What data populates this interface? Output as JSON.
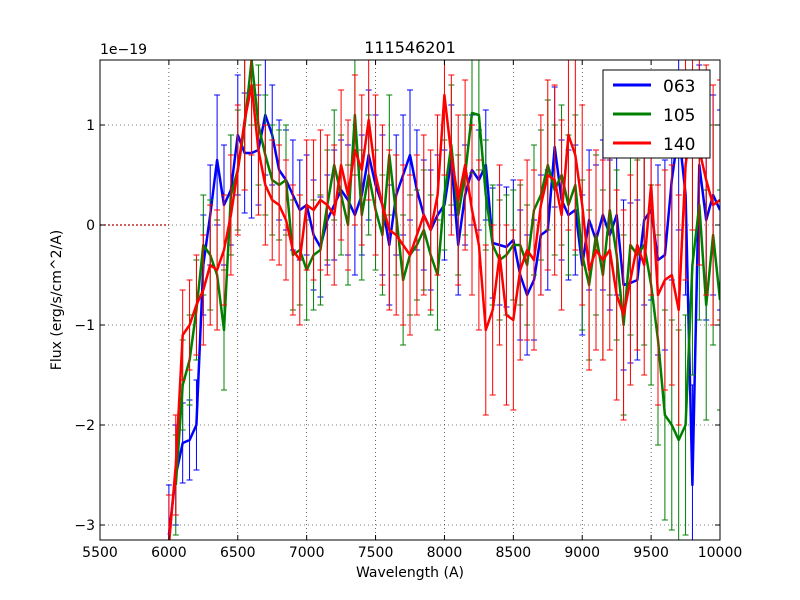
{
  "chart_data": {
    "type": "line",
    "title": "111546201",
    "xlabel": "Wavelength (A)",
    "ylabel": "Flux (erg/s/cm^2/A)",
    "offset_label": "1e−19",
    "xlim": [
      5500,
      10000
    ],
    "ylim": [
      -3.15,
      1.65
    ],
    "xticks": [
      5500,
      6000,
      6500,
      7000,
      7500,
      8000,
      8500,
      9000,
      9500,
      10000
    ],
    "yticks": [
      -3,
      -2,
      -1,
      0,
      1
    ],
    "ytick_labels": [
      "−3",
      "−2",
      "−1",
      "0",
      "1"
    ],
    "grid": "dotted",
    "legend_position": "top-right",
    "zero_line_until_x": 6000,
    "series": [
      {
        "name": "063",
        "color": "#0000ff",
        "x": [
          6000,
          6050,
          6100,
          6150,
          6200,
          6250,
          6300,
          6350,
          6400,
          6450,
          6500,
          6550,
          6600,
          6650,
          6700,
          6750,
          6800,
          6850,
          6900,
          6950,
          7000,
          7050,
          7100,
          7150,
          7200,
          7250,
          7300,
          7350,
          7400,
          7450,
          7500,
          7550,
          7600,
          7650,
          7700,
          7750,
          7800,
          7850,
          7900,
          7950,
          8000,
          8050,
          8100,
          8150,
          8200,
          8250,
          8300,
          8350,
          8400,
          8450,
          8500,
          8550,
          8600,
          8650,
          8700,
          8750,
          8800,
          8850,
          8900,
          8950,
          9000,
          9050,
          9100,
          9150,
          9200,
          9250,
          9300,
          9350,
          9400,
          9450,
          9500,
          9550,
          9600,
          9650,
          9700,
          9750,
          9800,
          9850,
          9900,
          9950,
          10000
        ],
        "y": [
          -3.1,
          -2.5,
          -2.18,
          -2.15,
          -2.0,
          -0.4,
          0.1,
          0.65,
          0.2,
          0.35,
          0.9,
          0.72,
          0.72,
          0.75,
          1.1,
          0.9,
          0.55,
          0.45,
          0.3,
          0.15,
          0.2,
          -0.1,
          -0.22,
          0.05,
          0.2,
          0.35,
          0.25,
          0.1,
          0.3,
          0.7,
          0.4,
          0.2,
          -0.2,
          0.3,
          0.5,
          0.7,
          0.35,
          0.1,
          -0.05,
          0.1,
          0.2,
          0.65,
          -0.2,
          0.3,
          0.55,
          0.45,
          0.6,
          -0.18,
          -0.2,
          -0.22,
          -0.15,
          -0.5,
          -0.7,
          -0.55,
          -0.1,
          -0.05,
          0.78,
          0.25,
          0.1,
          0.15,
          -0.4,
          0.05,
          -0.15,
          0.1,
          -0.1,
          0.1,
          -0.6,
          -0.58,
          -0.55,
          0.05,
          0.15,
          -0.35,
          -0.3,
          0.45,
          0.95,
          0.3,
          -2.6,
          0.6,
          0.05,
          0.3,
          0.15
        ],
        "err": [
          0.5,
          0.5,
          0.4,
          0.4,
          0.45,
          0.5,
          0.5,
          0.65,
          0.6,
          0.55,
          0.6,
          0.6,
          0.65,
          0.55,
          0.6,
          0.5,
          0.5,
          0.5,
          0.55,
          0.5,
          0.5,
          0.55,
          0.5,
          0.45,
          0.55,
          0.5,
          0.55,
          0.6,
          0.6,
          0.65,
          0.7,
          0.7,
          0.6,
          0.6,
          0.6,
          0.65,
          0.6,
          0.55,
          0.6,
          0.6,
          0.55,
          0.55,
          0.5,
          0.5,
          0.55,
          0.5,
          0.55,
          0.55,
          0.6,
          0.6,
          0.6,
          0.65,
          0.6,
          0.6,
          0.6,
          0.6,
          0.6,
          0.6,
          0.65,
          0.65,
          0.7,
          0.7,
          0.75,
          0.75,
          0.75,
          0.8,
          0.85,
          0.8,
          0.8,
          0.85,
          0.9,
          0.95,
          0.95,
          1.0,
          1.0,
          1.0,
          1.0,
          1.0,
          1.0,
          1.0,
          1.0
        ]
      },
      {
        "name": "105",
        "color": "#008000",
        "x": [
          6050,
          6100,
          6150,
          6200,
          6250,
          6300,
          6350,
          6400,
          6450,
          6500,
          6550,
          6600,
          6650,
          6700,
          6750,
          6800,
          6850,
          6900,
          6950,
          7000,
          7050,
          7100,
          7150,
          7200,
          7250,
          7300,
          7350,
          7400,
          7450,
          7500,
          7550,
          7600,
          7650,
          7700,
          7750,
          7800,
          7850,
          7900,
          7950,
          8000,
          8050,
          8100,
          8150,
          8200,
          8250,
          8300,
          8350,
          8400,
          8450,
          8500,
          8550,
          8600,
          8650,
          8700,
          8750,
          8800,
          8850,
          8900,
          8950,
          9000,
          9050,
          9100,
          9150,
          9200,
          9250,
          9300,
          9350,
          9400,
          9450,
          9500,
          9550,
          9600,
          9650,
          9700,
          9750,
          9800,
          9850,
          9900,
          9950,
          10000
        ],
        "y": [
          -2.6,
          -1.6,
          -1.35,
          -0.85,
          -0.2,
          -0.3,
          -0.5,
          -1.05,
          0.3,
          0.55,
          1.0,
          1.65,
          1.0,
          0.7,
          0.45,
          0.4,
          0.45,
          -0.3,
          -0.25,
          -0.45,
          -0.3,
          -0.25,
          0.2,
          0.6,
          0.3,
          0.0,
          1.1,
          0.1,
          0.5,
          0.15,
          -0.1,
          0.7,
          0.1,
          -0.55,
          -0.3,
          -0.2,
          -0.05,
          -0.3,
          -0.5,
          0.3,
          0.8,
          0.1,
          0.5,
          1.12,
          1.1,
          0.3,
          -0.2,
          -0.35,
          -0.3,
          -0.2,
          -0.2,
          -0.4,
          0.15,
          0.3,
          0.6,
          0.35,
          0.5,
          0.2,
          0.4,
          -0.3,
          -0.6,
          -0.1,
          -0.5,
          0.15,
          -0.3,
          -1.0,
          -0.2,
          -0.3,
          -0.2,
          -0.6,
          -1.15,
          -1.9,
          -2.0,
          -2.15,
          -2.0,
          -0.4,
          0.2,
          -0.8,
          -0.1,
          -0.75
        ],
        "err": [
          0.5,
          0.45,
          0.45,
          0.5,
          0.5,
          0.55,
          0.55,
          0.6,
          0.6,
          0.6,
          0.65,
          0.65,
          0.6,
          0.6,
          0.55,
          0.55,
          0.55,
          0.55,
          0.55,
          0.5,
          0.55,
          0.55,
          0.55,
          0.55,
          0.6,
          0.6,
          0.6,
          0.65,
          0.6,
          0.6,
          0.6,
          0.6,
          0.6,
          0.65,
          0.6,
          0.55,
          0.6,
          0.6,
          0.55,
          0.55,
          0.6,
          0.6,
          0.6,
          0.6,
          0.55,
          0.55,
          0.6,
          0.6,
          0.6,
          0.55,
          0.6,
          0.6,
          0.65,
          0.65,
          0.65,
          0.65,
          0.7,
          0.7,
          0.7,
          0.75,
          0.75,
          0.8,
          0.85,
          0.85,
          0.85,
          0.9,
          0.9,
          0.95,
          1.0,
          1.0,
          1.05,
          1.05,
          1.05,
          1.1,
          1.1,
          1.1,
          1.15,
          1.15,
          1.1,
          1.1
        ]
      },
      {
        "name": "140",
        "color": "#ff0000",
        "x": [
          6000,
          6050,
          6100,
          6150,
          6200,
          6250,
          6300,
          6350,
          6400,
          6450,
          6500,
          6550,
          6600,
          6650,
          6700,
          6750,
          6800,
          6850,
          6900,
          6950,
          7000,
          7050,
          7100,
          7150,
          7200,
          7250,
          7300,
          7350,
          7400,
          7450,
          7500,
          7550,
          7600,
          7650,
          7700,
          7750,
          7800,
          7850,
          7900,
          7950,
          8000,
          8050,
          8100,
          8150,
          8200,
          8250,
          8300,
          8350,
          8400,
          8450,
          8500,
          8550,
          8600,
          8650,
          8700,
          8750,
          8800,
          8850,
          8900,
          8950,
          9000,
          9050,
          9100,
          9150,
          9200,
          9250,
          9300,
          9350,
          9400,
          9450,
          9500,
          9550,
          9600,
          9650,
          9700,
          9750,
          9800,
          9850,
          9900,
          9950,
          10000
        ],
        "y": [
          -3.2,
          -2.4,
          -1.1,
          -1.0,
          -0.8,
          -0.65,
          -0.4,
          -0.45,
          -0.25,
          0.1,
          0.55,
          1.05,
          1.4,
          0.75,
          0.4,
          0.25,
          0.2,
          0.05,
          -0.25,
          -0.35,
          0.2,
          0.15,
          0.25,
          0.2,
          0.1,
          0.6,
          0.3,
          0.75,
          0.55,
          1.05,
          0.5,
          0.2,
          -0.05,
          -0.1,
          -0.2,
          -0.3,
          -0.1,
          0.1,
          -0.05,
          0.3,
          1.3,
          0.7,
          0.25,
          0.6,
          0.15,
          -0.2,
          -1.05,
          -0.85,
          -0.3,
          -0.9,
          -0.95,
          -0.45,
          -0.25,
          -0.35,
          0.2,
          0.5,
          0.45,
          0.1,
          0.9,
          0.7,
          0.2,
          -0.45,
          -0.25,
          -0.35,
          -0.25,
          -0.7,
          -0.9,
          -0.55,
          -0.2,
          -0.4,
          0.4,
          -0.7,
          -0.55,
          -0.5,
          -0.85,
          0.6,
          1.1,
          0.75,
          0.45,
          0.2,
          0.25
        ],
        "err": [
          0.5,
          0.5,
          0.45,
          0.45,
          0.5,
          0.55,
          0.6,
          0.6,
          0.55,
          0.6,
          0.65,
          0.7,
          0.7,
          0.65,
          0.6,
          0.6,
          0.6,
          0.6,
          0.65,
          0.65,
          0.65,
          0.7,
          0.7,
          0.7,
          0.7,
          0.75,
          0.75,
          0.75,
          0.75,
          0.8,
          0.8,
          0.8,
          0.8,
          0.8,
          0.8,
          0.8,
          0.8,
          0.8,
          0.8,
          0.8,
          0.8,
          0.8,
          0.85,
          0.85,
          0.85,
          0.85,
          0.85,
          0.85,
          0.9,
          0.9,
          0.9,
          0.9,
          0.9,
          0.9,
          0.9,
          0.95,
          0.95,
          0.95,
          0.95,
          0.95,
          1.0,
          1.0,
          1.0,
          1.0,
          1.0,
          1.05,
          1.05,
          1.05,
          1.05,
          1.1,
          1.1,
          1.1,
          1.1,
          1.1,
          1.15,
          1.15,
          1.15,
          1.15,
          1.15,
          1.2,
          1.2
        ]
      }
    ]
  }
}
